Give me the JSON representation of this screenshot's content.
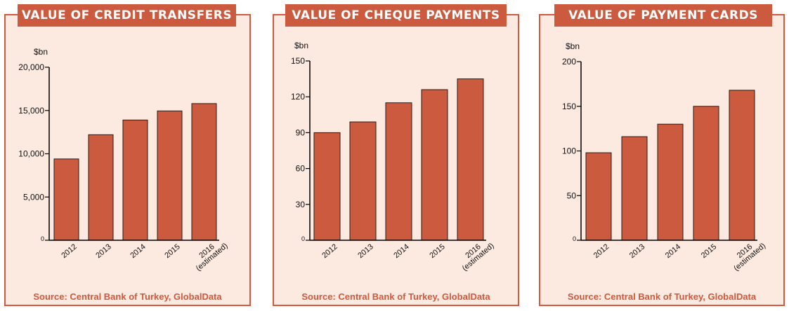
{
  "charts": [
    {
      "title": "VALUE OF CREDIT TRANSFERS",
      "source": "Source: Central Bank of Turkey, GlobalData"
    },
    {
      "title": "VALUE OF CHEQUE PAYMENTS",
      "source": "Source: Central Bank of Turkey, GlobalData"
    },
    {
      "title": "VALUE OF PAYMENT CARDS",
      "source": "Source: Central Bank of Turkey, GlobalData"
    }
  ],
  "colors": {
    "bar": "#cc5a3e",
    "panel_bg": "#fce9e0",
    "panel_border": "#cf5a3f",
    "title_bg": "#cc5a3e"
  },
  "chart_data": [
    {
      "type": "bar",
      "title": "VALUE OF CREDIT TRANSFERS",
      "unit_label": "$bn",
      "categories": [
        "2012",
        "2013",
        "2014",
        "2015",
        "2016 (estimated)"
      ],
      "values": [
        9400,
        12200,
        13900,
        14950,
        15800
      ],
      "yticks": [
        0,
        5000,
        10000,
        15000,
        20000
      ],
      "ytick_labels": [
        "0",
        "5,000",
        "10,000",
        "15,000",
        "20,000"
      ],
      "ylim": [
        0,
        20000
      ],
      "grid": false,
      "source": "Source: Central Bank of Turkey, GlobalData"
    },
    {
      "type": "bar",
      "title": "VALUE OF CHEQUE PAYMENTS",
      "unit_label": "$bn",
      "categories": [
        "2012",
        "2013",
        "2014",
        "2015",
        "2016 (estimated)"
      ],
      "values": [
        90,
        99,
        115,
        126,
        135
      ],
      "yticks": [
        0,
        30,
        60,
        90,
        120,
        150
      ],
      "ytick_labels": [
        "0",
        "30",
        "60",
        "90",
        "120",
        "150"
      ],
      "ylim": [
        0,
        150
      ],
      "grid": false,
      "source": "Source: Central Bank of Turkey, GlobalData"
    },
    {
      "type": "bar",
      "title": "VALUE OF PAYMENT CARDS",
      "unit_label": "$bn",
      "categories": [
        "2012",
        "2013",
        "2014",
        "2015",
        "2016 (estimated)"
      ],
      "values": [
        98,
        116,
        130,
        150,
        168
      ],
      "yticks": [
        0,
        50,
        100,
        150,
        200
      ],
      "ytick_labels": [
        "0",
        "50",
        "100",
        "150",
        "200"
      ],
      "ylim": [
        0,
        200
      ],
      "grid": false,
      "source": "Source: Central Bank of Turkey, GlobalData"
    }
  ]
}
